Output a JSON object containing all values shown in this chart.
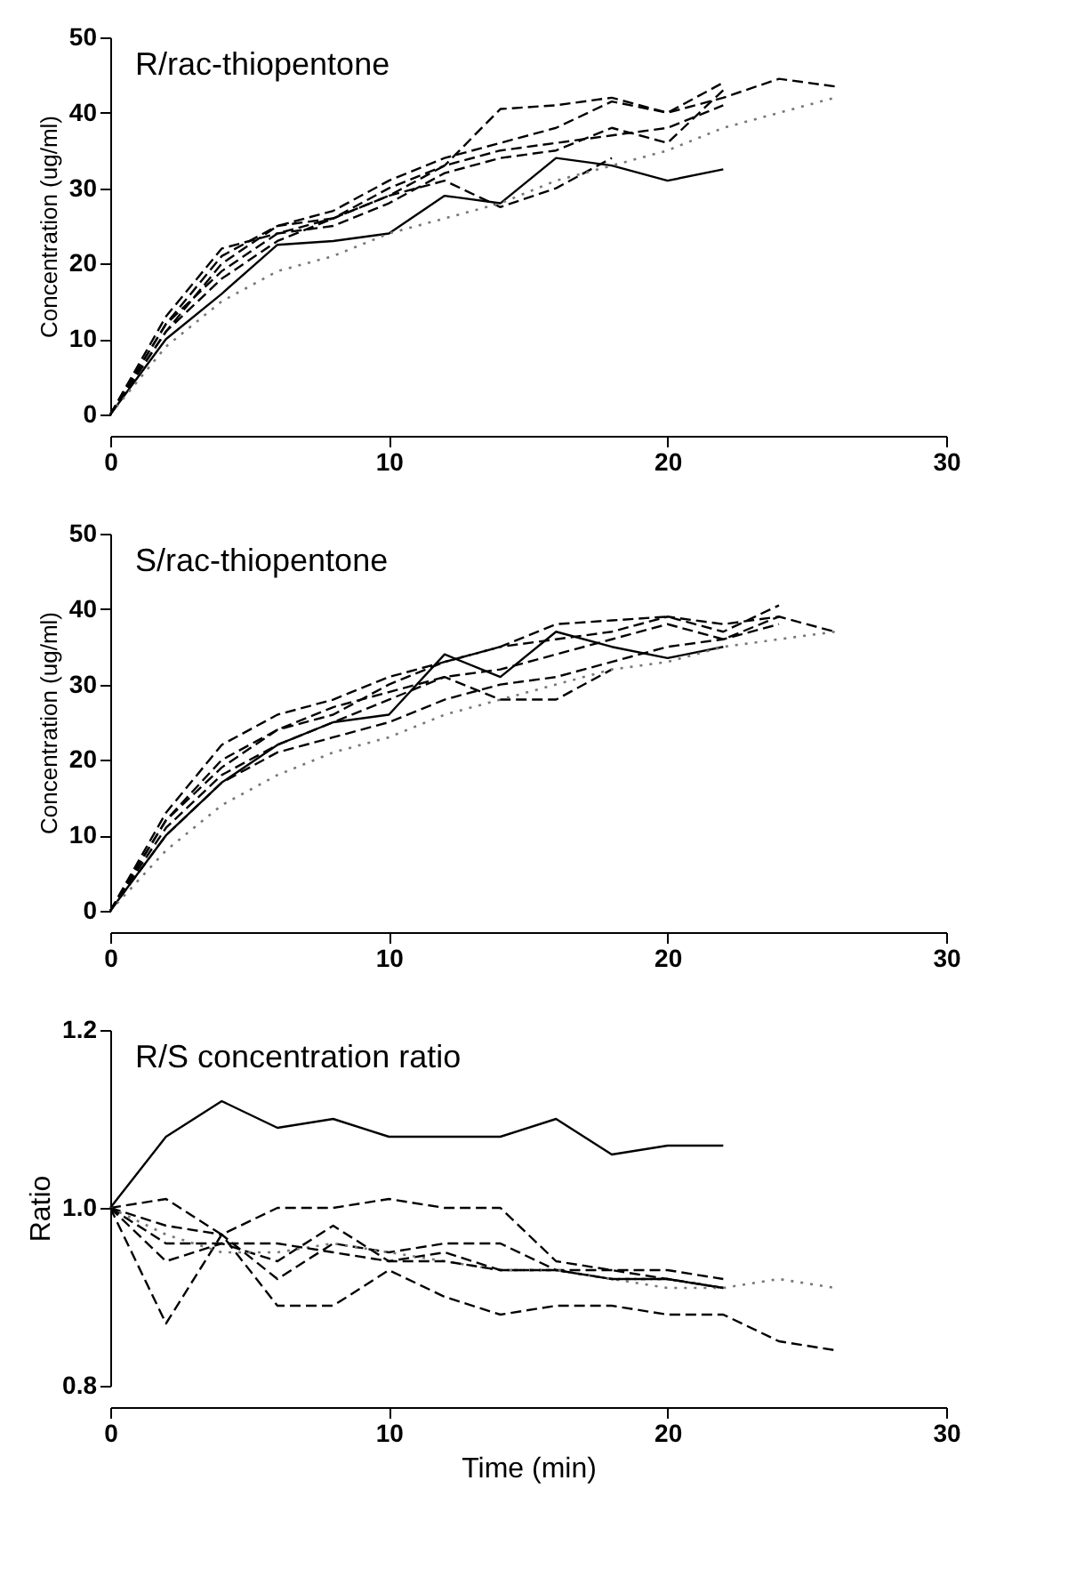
{
  "chart_data": [
    {
      "type": "line",
      "title": "R/rac-thiopentone",
      "ylabel": "Concentration (ug/ml)",
      "x": [
        0,
        2,
        4,
        6,
        8,
        10,
        12,
        14,
        16,
        18,
        20,
        22,
        24,
        26
      ],
      "xlim": [
        0,
        30
      ],
      "xticks": [
        0,
        10,
        20,
        30
      ],
      "ylim": [
        0,
        50
      ],
      "yticks": [
        0,
        10,
        20,
        30,
        40,
        50
      ],
      "series": [
        {
          "color": "#000000",
          "line_style": "solid",
          "values": [
            0,
            10,
            16,
            22.5,
            23,
            24,
            29,
            28,
            34,
            33,
            31,
            32.5,
            null,
            null
          ]
        },
        {
          "color": "#000000",
          "line_style": "dashed",
          "values": [
            0,
            12,
            21,
            25,
            26,
            30,
            33,
            40.5,
            41,
            42,
            40,
            44,
            null,
            null
          ]
        },
        {
          "color": "#000000",
          "line_style": "dashed",
          "values": [
            0,
            11,
            20,
            25,
            27,
            31,
            34,
            36,
            38,
            41.5,
            40,
            42,
            44.5,
            43.5
          ]
        },
        {
          "color": "#000000",
          "line_style": "dashed",
          "values": [
            0,
            13,
            22,
            24,
            25,
            28,
            32,
            34,
            35,
            38,
            36,
            43,
            null,
            null
          ]
        },
        {
          "color": "#000000",
          "line_style": "dashed",
          "values": [
            0,
            12,
            19,
            24,
            26,
            29,
            31,
            27.5,
            30,
            34,
            null,
            null,
            null,
            null
          ]
        },
        {
          "color": "#777777",
          "line_style": "dotted",
          "values": [
            0,
            9,
            15,
            19,
            21,
            24,
            26,
            28,
            31,
            33,
            35,
            38,
            40,
            42
          ]
        },
        {
          "color": "#000000",
          "line_style": "dashed",
          "values": [
            0,
            11,
            18,
            23,
            26,
            29,
            33,
            35,
            36,
            37,
            38,
            41,
            null,
            null
          ]
        }
      ]
    },
    {
      "type": "line",
      "title": "S/rac-thiopentone",
      "ylabel": "Concentration (ug/ml)",
      "x": [
        0,
        2,
        4,
        6,
        8,
        10,
        12,
        14,
        16,
        18,
        20,
        22,
        24,
        26
      ],
      "xlim": [
        0,
        30
      ],
      "xticks": [
        0,
        10,
        20,
        30
      ],
      "ylim": [
        0,
        50
      ],
      "yticks": [
        0,
        10,
        20,
        30,
        40,
        50
      ],
      "series": [
        {
          "color": "#000000",
          "line_style": "solid",
          "values": [
            0,
            10,
            17,
            22,
            25,
            26,
            34,
            31,
            37,
            35,
            33.5,
            35,
            null,
            null
          ]
        },
        {
          "color": "#000000",
          "line_style": "dashed",
          "values": [
            0,
            13,
            22,
            26,
            28,
            31,
            33,
            35,
            38,
            38.5,
            39,
            37,
            40.5,
            null
          ]
        },
        {
          "color": "#000000",
          "line_style": "dashed",
          "values": [
            0,
            12,
            19,
            24,
            26,
            30,
            33,
            35,
            36,
            37,
            39,
            38,
            39,
            37
          ]
        },
        {
          "color": "#000000",
          "line_style": "dashed",
          "values": [
            0,
            11,
            18,
            22,
            25,
            28,
            31,
            28,
            28,
            32,
            null,
            null,
            null,
            null
          ]
        },
        {
          "color": "#000000",
          "line_style": "dashed",
          "values": [
            0,
            12,
            20,
            24,
            27,
            29,
            31,
            32,
            34,
            36,
            38,
            36,
            39,
            null
          ]
        },
        {
          "color": "#777777",
          "line_style": "dotted",
          "values": [
            0,
            8,
            14,
            18,
            21,
            23,
            26,
            28,
            30,
            32,
            33,
            35,
            36,
            37
          ]
        },
        {
          "color": "#000000",
          "line_style": "dashed",
          "values": [
            0,
            10,
            17,
            21,
            23,
            25,
            28,
            30,
            31,
            33,
            35,
            36,
            38,
            null
          ]
        }
      ]
    },
    {
      "type": "line",
      "title": "R/S concentration ratio",
      "xlabel": "Time (min)",
      "ylabel": "Ratio",
      "x": [
        0,
        2,
        4,
        6,
        8,
        10,
        12,
        14,
        16,
        18,
        20,
        22,
        24,
        26
      ],
      "xlim": [
        0,
        30
      ],
      "xticks": [
        0,
        10,
        20,
        30
      ],
      "ylim": [
        0.8,
        1.2
      ],
      "yticks": [
        {
          "value": 0.8,
          "label": "0.8"
        },
        {
          "value": 1.0,
          "label": "1.0"
        },
        {
          "value": 1.2,
          "label": "1.2"
        }
      ],
      "series": [
        {
          "color": "#000000",
          "line_style": "solid",
          "values": [
            1,
            1.08,
            1.12,
            1.09,
            1.1,
            1.08,
            1.08,
            1.08,
            1.1,
            1.06,
            1.07,
            1.07,
            null,
            null
          ]
        },
        {
          "color": "#000000",
          "line_style": "dashed",
          "values": [
            1,
            1.01,
            0.97,
            1.0,
            1.0,
            1.01,
            1.0,
            1.0,
            0.94,
            0.93,
            0.92,
            0.91,
            null,
            null
          ]
        },
        {
          "color": "#000000",
          "line_style": "dashed",
          "values": [
            1,
            0.87,
            0.97,
            0.89,
            0.89,
            0.93,
            0.9,
            0.88,
            0.89,
            0.89,
            0.88,
            0.88,
            0.85,
            0.84
          ]
        },
        {
          "color": "#000000",
          "line_style": "dashed",
          "values": [
            1,
            0.94,
            0.96,
            0.94,
            0.98,
            0.94,
            0.95,
            0.93,
            0.93,
            0.92,
            0.92,
            0.91,
            null,
            null
          ]
        },
        {
          "color": "#000000",
          "line_style": "dashed",
          "values": [
            1,
            0.98,
            0.97,
            0.92,
            0.96,
            0.95,
            0.96,
            0.96,
            0.93,
            0.93,
            0.93,
            0.92,
            null,
            null
          ]
        },
        {
          "color": "#777777",
          "line_style": "dotted",
          "values": [
            1,
            0.97,
            0.95,
            0.95,
            0.96,
            0.95,
            0.94,
            0.93,
            0.93,
            0.92,
            0.91,
            0.91,
            0.92,
            0.91
          ]
        },
        {
          "color": "#000000",
          "line_style": "dashed",
          "values": [
            1,
            0.96,
            0.96,
            0.96,
            0.95,
            0.94,
            0.94,
            0.93,
            0.93,
            0.92,
            0.92,
            0.91,
            null,
            null
          ]
        }
      ]
    }
  ]
}
